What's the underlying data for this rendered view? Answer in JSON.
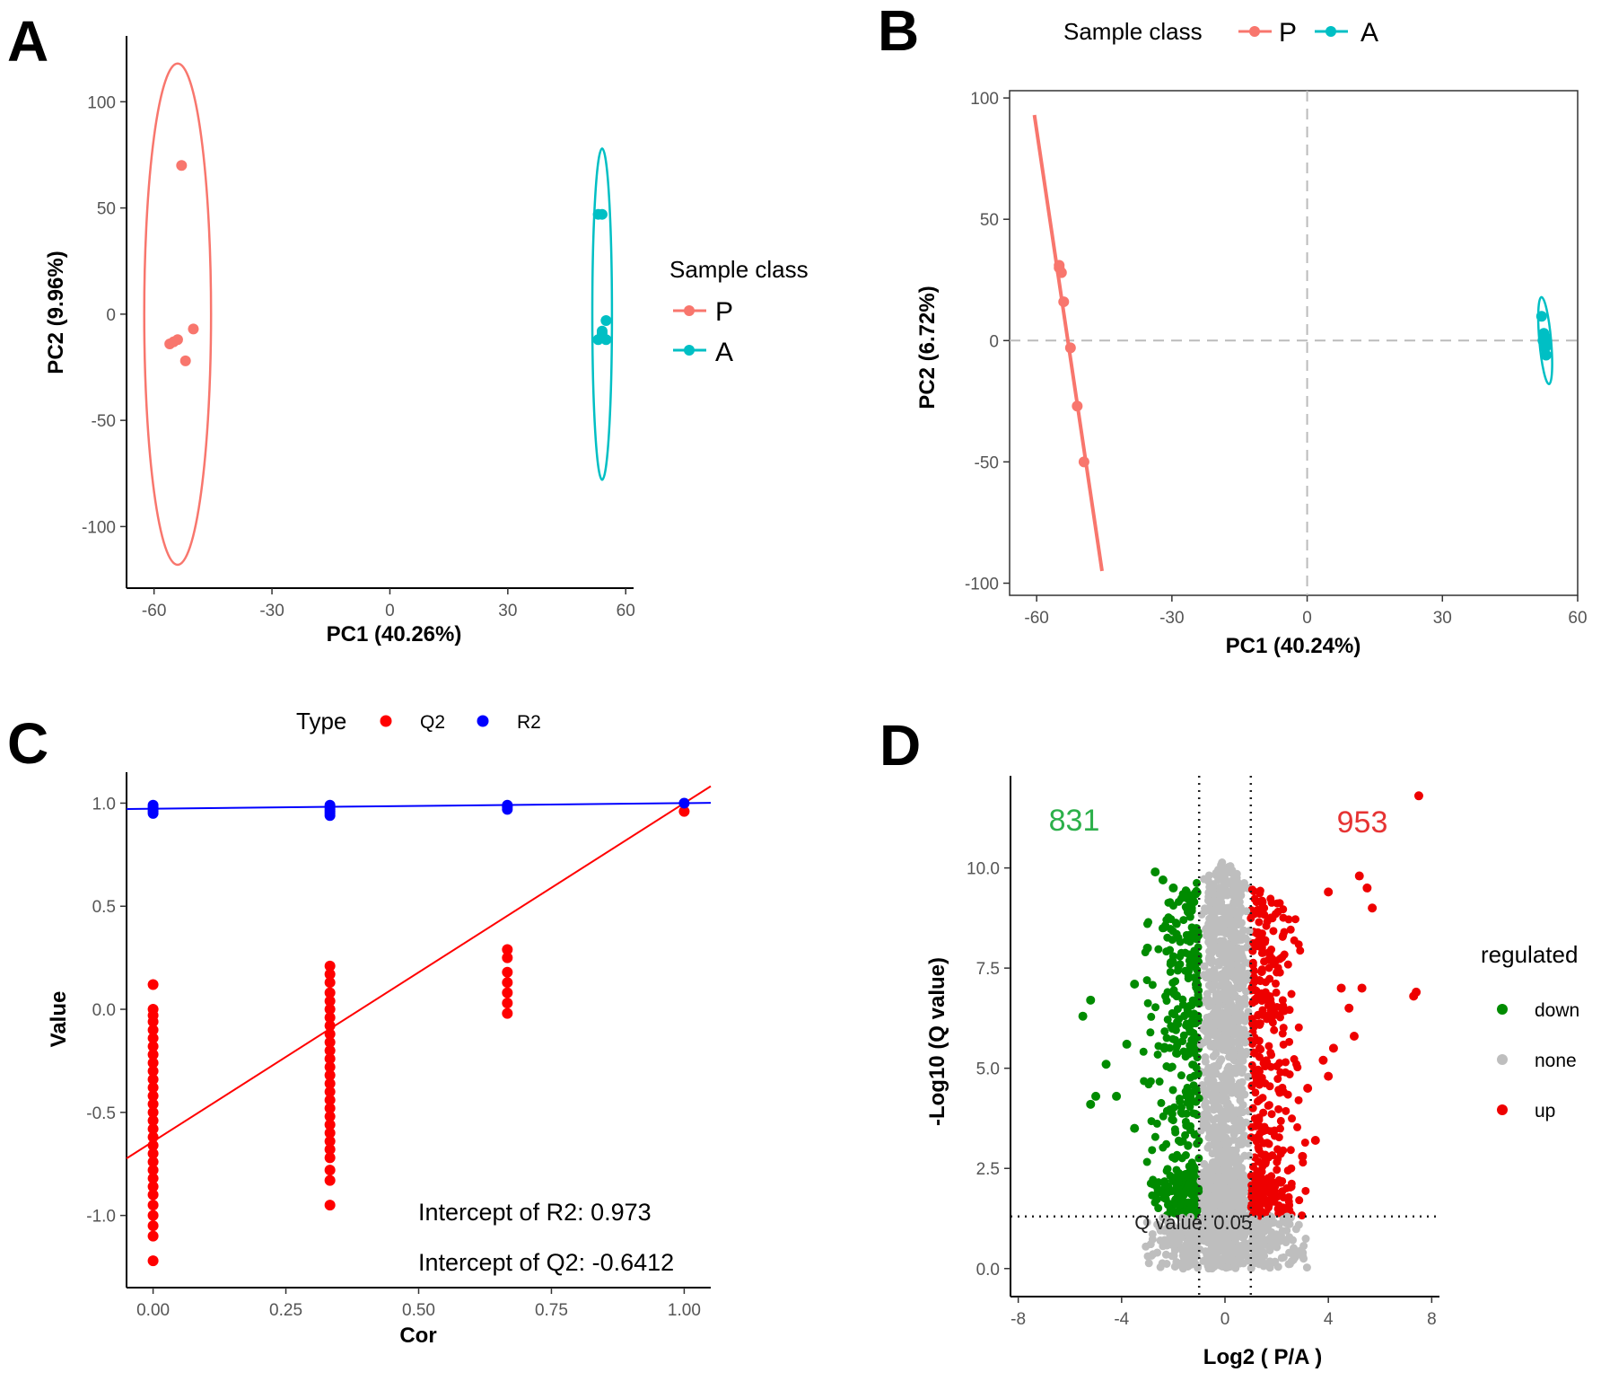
{
  "panels": {
    "A": {
      "letter": "A"
    },
    "B": {
      "letter": "B"
    },
    "C": {
      "letter": "C"
    },
    "D": {
      "letter": "D"
    }
  },
  "chart_data": [
    {
      "panel": "A",
      "type": "scatter",
      "xlabel": "PC1 (40.26%)",
      "ylabel": "PC2 (9.96%)",
      "xlim": [
        -67,
        62
      ],
      "ylim": [
        -129,
        131
      ],
      "xticks": [
        -60,
        -30,
        0,
        30,
        60
      ],
      "yticks": [
        100,
        50,
        0,
        -50,
        -100
      ],
      "legend_title": "Sample class",
      "series": [
        {
          "name": "P",
          "color": "#F8766D",
          "points": [
            [
              -53,
              70
            ],
            [
              -56,
              -14
            ],
            [
              -55,
              -13
            ],
            [
              -54,
              -12
            ],
            [
              -50,
              -7
            ],
            [
              -52,
              -22
            ]
          ],
          "ellipse": {
            "cx": -54,
            "cy": 0,
            "rx": 8.5,
            "ry": 118
          }
        },
        {
          "name": "A",
          "color": "#00BFC4",
          "points": [
            [
              53,
              47
            ],
            [
              54,
              47
            ],
            [
              54,
              -9
            ],
            [
              55,
              -12
            ],
            [
              53,
              -12
            ],
            [
              55,
              -3
            ],
            [
              54,
              -8
            ]
          ],
          "ellipse": {
            "cx": 54,
            "cy": 0,
            "rx": 2.5,
            "ry": 78
          }
        }
      ]
    },
    {
      "panel": "B",
      "type": "scatter",
      "xlabel": "PC1 (40.24%)",
      "ylabel": "PC2 (6.72%)",
      "xlim": [
        -66,
        60
      ],
      "ylim": [
        -105,
        103
      ],
      "xticks": [
        -60,
        -30,
        0,
        30,
        60
      ],
      "yticks": [
        100,
        50,
        0,
        -50,
        -100
      ],
      "legend_title": "Sample class",
      "series": [
        {
          "name": "P",
          "color": "#F8766D",
          "points": [
            [
              -55,
              30
            ],
            [
              -55,
              31
            ],
            [
              -54.5,
              28
            ],
            [
              -54,
              16
            ],
            [
              -52.5,
              -3
            ],
            [
              -51,
              -27
            ],
            [
              -49.5,
              -50
            ]
          ],
          "line": [
            [
              -60.5,
              93
            ],
            [
              -45.5,
              -95
            ]
          ]
        },
        {
          "name": "A",
          "color": "#00BFC4",
          "points": [
            [
              52,
              10
            ],
            [
              52.5,
              3
            ],
            [
              53,
              1
            ],
            [
              52.3,
              0
            ],
            [
              53.2,
              -2
            ],
            [
              52.8,
              -3
            ],
            [
              53,
              -6
            ]
          ],
          "ellipse": {
            "cx": 52.8,
            "cy": 0,
            "rx": 1.3,
            "ry": 18
          }
        }
      ]
    },
    {
      "panel": "C",
      "type": "scatter",
      "xlabel": "Cor",
      "ylabel": "Value",
      "xlim": [
        -0.05,
        1.05
      ],
      "ylim": [
        -1.35,
        1.15
      ],
      "xticks": [
        "0.00",
        "0.25",
        "0.50",
        "0.75",
        "1.00"
      ],
      "yticks": [
        "1.0",
        "0.5",
        "0.0",
        "-0.5",
        "-1.0"
      ],
      "legend_title": "Type",
      "annotations": [
        "Intercept of R2: 0.973",
        "Intercept of Q2: -0.6412"
      ],
      "series": [
        {
          "name": "Q2",
          "color": "#FF0000",
          "x_groups": [
            0,
            0.333,
            0.667,
            1.0
          ],
          "y_groups": [
            [
              0.12,
              0.0,
              -0.03,
              -0.06,
              -0.1,
              -0.14,
              -0.18,
              -0.22,
              -0.26,
              -0.3,
              -0.34,
              -0.38,
              -0.42,
              -0.46,
              -0.5,
              -0.54,
              -0.58,
              -0.62,
              -0.66,
              -0.7,
              -0.74,
              -0.78,
              -0.82,
              -0.86,
              -0.9,
              -0.95,
              -1.0,
              -1.05,
              -1.1,
              -1.22
            ],
            [
              0.21,
              0.17,
              0.13,
              0.08,
              0.04,
              0.0,
              -0.04,
              -0.08,
              -0.12,
              -0.16,
              -0.2,
              -0.24,
              -0.28,
              -0.32,
              -0.36,
              -0.4,
              -0.44,
              -0.48,
              -0.52,
              -0.56,
              -0.6,
              -0.64,
              -0.68,
              -0.72,
              -0.78,
              -0.83,
              -0.95
            ],
            [
              0.29,
              0.25,
              0.18,
              0.13,
              0.08,
              0.03,
              -0.02
            ],
            [
              0.96
            ]
          ],
          "regression": {
            "intercept": -0.6412,
            "slope": 1.6412
          }
        },
        {
          "name": "R2",
          "color": "#0000FF",
          "x_groups": [
            0,
            0.333,
            0.667,
            1.0
          ],
          "y_groups": [
            [
              0.99,
              0.98,
              0.97,
              0.96,
              0.95
            ],
            [
              0.99,
              0.98,
              0.97,
              0.96,
              0.95,
              0.94
            ],
            [
              0.99,
              0.98,
              0.97
            ],
            [
              1.0
            ]
          ],
          "regression": {
            "intercept": 0.973,
            "slope": 0.027
          }
        }
      ]
    },
    {
      "panel": "D",
      "type": "scatter",
      "xlabel": "Log2 ( P/A )",
      "ylabel": "-Log10 (Q value)",
      "xlim": [
        -8.3,
        8.3
      ],
      "ylim": [
        -0.7,
        12.3
      ],
      "xticks": [
        -8,
        -4,
        0,
        4,
        8
      ],
      "yticks": [
        "10.0",
        "7.5",
        "5.0",
        "2.5",
        "0.0"
      ],
      "legend_title": "regulated",
      "count_down": "831",
      "count_up": "953",
      "threshold_label": "Q value: 0.05",
      "thresholds": {
        "x": [
          -1,
          1
        ],
        "y": 1.3
      },
      "categories": [
        {
          "name": "down",
          "color": "#008B00"
        },
        {
          "name": "none",
          "color": "#BEBEBE"
        },
        {
          "name": "up",
          "color": "#EE0000"
        }
      ],
      "highlight_points": {
        "up": [
          [
            7.5,
            11.8
          ],
          [
            5.2,
            9.8
          ],
          [
            5.5,
            9.5
          ],
          [
            5.7,
            9.0
          ],
          [
            4.0,
            9.4
          ],
          [
            7.3,
            6.8
          ],
          [
            7.4,
            6.9
          ],
          [
            5.3,
            7.0
          ],
          [
            4.5,
            7.0
          ],
          [
            4.8,
            6.5
          ],
          [
            5.0,
            5.8
          ],
          [
            4.2,
            5.5
          ],
          [
            3.8,
            5.2
          ],
          [
            4.0,
            4.8
          ],
          [
            3.2,
            4.5
          ],
          [
            3.5,
            3.2
          ],
          [
            3.0,
            2.8
          ]
        ],
        "down": [
          [
            -2.7,
            9.9
          ],
          [
            -2.4,
            9.7
          ],
          [
            -2.0,
            9.5
          ],
          [
            -1.6,
            9.3
          ],
          [
            -5.5,
            6.3
          ],
          [
            -5.2,
            6.7
          ],
          [
            -4.6,
            5.1
          ],
          [
            -5.0,
            4.3
          ],
          [
            -5.2,
            4.1
          ],
          [
            -4.2,
            4.3
          ],
          [
            -3.5,
            3.5
          ],
          [
            -3.8,
            5.6
          ],
          [
            -3.0,
            8.0
          ],
          [
            -3.5,
            7.1
          ]
        ]
      }
    }
  ]
}
